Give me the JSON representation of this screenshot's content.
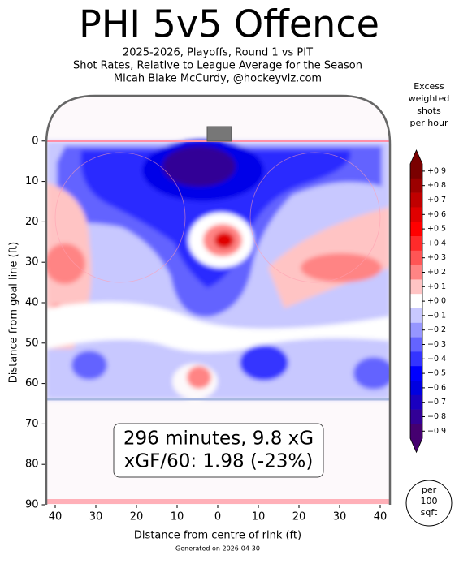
{
  "chart_data": {
    "type": "contour",
    "title": "PHI 5v5 Offence",
    "subtitle": [
      "2025-2026, Playoffs, Round 1 vs PIT",
      "Shot Rates, Relative to League Average for the Season",
      "Micah Blake McCurdy, @hockeyviz.com"
    ],
    "xlabel": "Distance from centre of rink (ft)",
    "ylabel": "Distance from goal line (ft)",
    "xlim": [
      -42.5,
      42.5
    ],
    "xticks": [
      {
        "value": -40,
        "label": "40"
      },
      {
        "value": -30,
        "label": "30"
      },
      {
        "value": -20,
        "label": "20"
      },
      {
        "value": -10,
        "label": "10"
      },
      0,
      10,
      20,
      30,
      40
    ],
    "ylim": [
      -11.2,
      90
    ],
    "yticks": [
      0,
      10,
      20,
      30,
      40,
      50,
      60,
      70,
      80,
      90
    ],
    "colorbar_title": [
      "Excess",
      "weighted",
      "shots",
      "per hour"
    ],
    "levels": [
      {
        "value": 0.9,
        "label": "+0.9"
      },
      {
        "value": 0.8,
        "label": "+0.8"
      },
      {
        "value": 0.7,
        "label": "+0.7"
      },
      {
        "value": 0.6,
        "label": "+0.6"
      },
      {
        "value": 0.5,
        "label": "+0.5"
      },
      {
        "value": 0.4,
        "label": "+0.4"
      },
      {
        "value": 0.3,
        "label": "+0.3"
      },
      {
        "value": 0.2,
        "label": "+0.2"
      },
      {
        "value": 0.1,
        "label": "+0.1"
      },
      {
        "value": 0,
        "label": "+0.0"
      },
      {
        "value": -0.1,
        "label": "−0.1"
      },
      {
        "value": -0.2,
        "label": "−0.2"
      },
      {
        "value": -0.3,
        "label": "−0.3"
      },
      {
        "value": -0.4,
        "label": "−0.4"
      },
      {
        "value": -0.5,
        "label": "−0.5"
      },
      {
        "value": -0.6,
        "label": "−0.6"
      },
      {
        "value": -0.7,
        "label": "−0.7"
      },
      {
        "value": -0.8,
        "label": "−0.8"
      },
      {
        "value": -0.9,
        "label": "−0.9"
      }
    ],
    "level_colors": [
      "#7a0000",
      "#9c0000",
      "#c00000",
      "#e00000",
      "#ff0000",
      "#ff2a2a",
      "#ff5555",
      "#ff8484",
      "#ffc4c4",
      "#ffffff",
      "#c8c8ff",
      "#9696ff",
      "#6464ff",
      "#3434ff",
      "#0000ff",
      "#0000e0",
      "#1a00c0",
      "#320096",
      "#450070"
    ],
    "annotation": [
      "296 minutes, 9.8 xG",
      "xGF/60: 1.98 (-23%)"
    ],
    "scale_note": [
      "per",
      "100",
      "sqft"
    ],
    "footer": "Generated on 2026-04-30"
  }
}
